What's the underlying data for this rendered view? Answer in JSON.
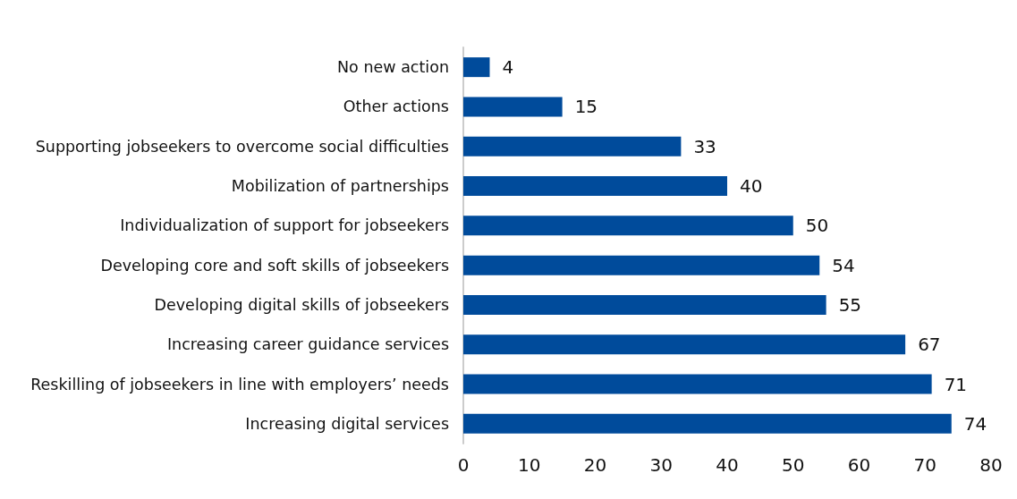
{
  "chart_data": {
    "type": "bar",
    "orientation": "horizontal",
    "categories": [
      "No new action",
      "Other actions",
      "Supporting jobseekers to overcome social difficulties",
      "Mobilization of partnerships",
      "Individualization of support for jobseekers",
      "Developing core and soft skills of jobseekers",
      "Developing digital skills of jobseekers",
      "Increasing career guidance services",
      "Reskilling of jobseekers in line with employers’ needs",
      "Increasing digital services"
    ],
    "values": [
      4,
      15,
      33,
      40,
      50,
      54,
      55,
      67,
      71,
      74
    ],
    "color": "#004b9b",
    "xlim": [
      0,
      80
    ],
    "xticks": [
      0,
      10,
      20,
      30,
      40,
      50,
      60,
      70,
      80
    ],
    "grid": false,
    "data_labels": true
  }
}
